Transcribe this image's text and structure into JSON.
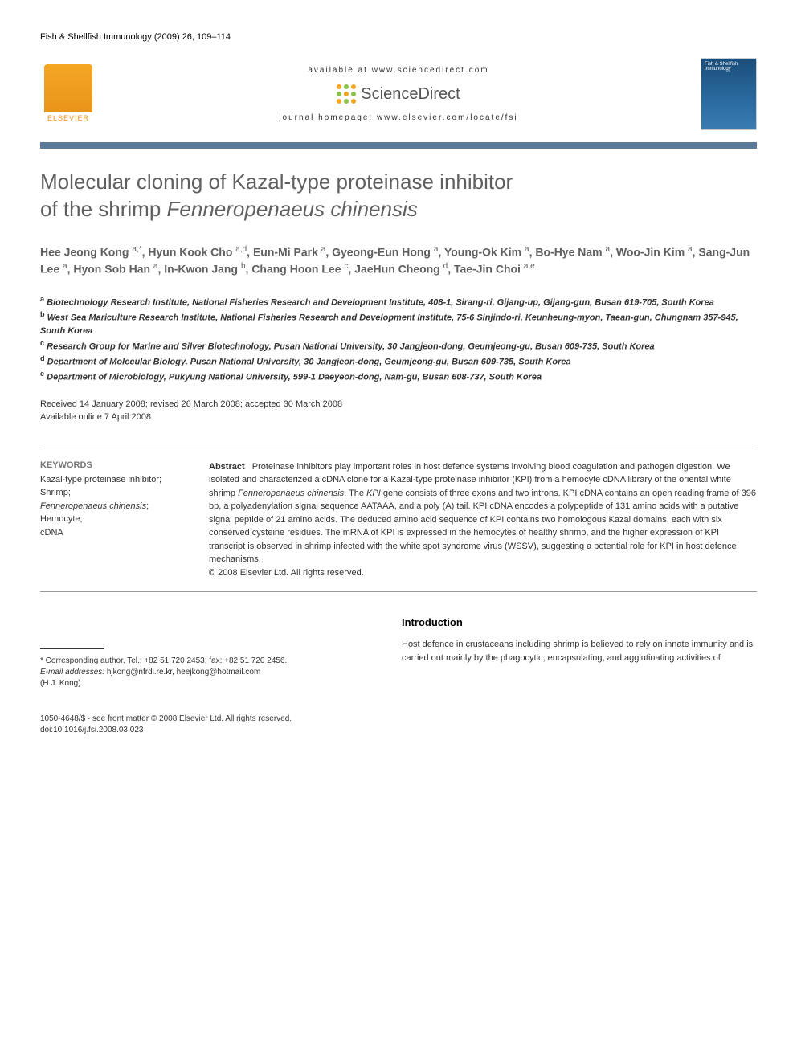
{
  "journal_ref": "Fish & Shellfish Immunology (2009) 26, 109–114",
  "header": {
    "available_text": "available at www.sciencedirect.com",
    "sd_brand": "ScienceDirect",
    "homepage_text": "journal homepage: www.elsevier.com/locate/fsi",
    "elsevier_label": "ELSEVIER",
    "cover_title": "Fish & Shellfish Immunology"
  },
  "divider_color": "#5b7a9a",
  "title": {
    "line1": "Molecular cloning of Kazal-type proteinase inhibitor",
    "line2_prefix": "of the shrimp ",
    "line2_italic": "Fenneropenaeus chinensis"
  },
  "authors_html": "Hee Jeong Kong <sup>a,*</sup>, Hyun Kook Cho <sup>a,d</sup>, Eun-Mi Park <sup>a</sup>, Gyeong-Eun Hong <sup>a</sup>, Young-Ok Kim <sup>a</sup>, Bo-Hye Nam <sup>a</sup>, Woo-Jin Kim <sup>a</sup>, Sang-Jun Lee <sup>a</sup>, Hyon Sob Han <sup>a</sup>, In-Kwon Jang <sup>b</sup>, Chang Hoon Lee <sup>c</sup>, JaeHun Cheong <sup>d</sup>, Tae-Jin Choi <sup>a,e</sup>",
  "affiliations": [
    "<sup>a</sup> Biotechnology Research Institute, National Fisheries Research and Development Institute, 408-1, Sirang-ri, Gijang-up, Gijang-gun, Busan 619-705, South Korea",
    "<sup>b</sup> West Sea Mariculture Research Institute, National Fisheries Research and Development Institute, 75-6 Sinjindo-ri, Keunheung-myon, Taean-gun, Chungnam 357-945, South Korea",
    "<sup>c</sup> Research Group for Marine and Silver Biotechnology, Pusan National University, 30 Jangjeon-dong, Geumjeong-gu, Busan 609-735, South Korea",
    "<sup>d</sup> Department of Molecular Biology, Pusan National University, 30 Jangjeon-dong, Geumjeong-gu, Busan 609-735, South Korea",
    "<sup>e</sup> Department of Microbiology, Pukyung National University, 599-1 Daeyeon-dong, Nam-gu, Busan 608-737, South Korea"
  ],
  "dates": {
    "received": "Received 14 January 2008; revised 26 March 2008; accepted 30 March 2008",
    "online": "Available online 7 April 2008"
  },
  "keywords": {
    "heading": "KEYWORDS",
    "items": [
      "Kazal-type proteinase inhibitor;",
      "Shrimp;",
      "<span class=\"italic\">Fenneropenaeus chinensis</span>;",
      "Hemocyte;",
      "cDNA"
    ]
  },
  "abstract": {
    "label": "Abstract",
    "body": "Proteinase inhibitors play important roles in host defence systems involving blood coagulation and pathogen digestion. We isolated and characterized a cDNA clone for a Kazal-type proteinase inhibitor (KPI) from a hemocyte cDNA library of the oriental white shrimp <span class=\"italic\">Fenneropenaeus chinensis</span>. The <span class=\"italic\">KPI</span> gene consists of three exons and two introns. KPI cDNA contains an open reading frame of 396 bp, a polyadenylation signal sequence AATAAA, and a poly (A) tail. KPI cDNA encodes a polypeptide of 131 amino acids with a putative signal peptide of 21 amino acids. The deduced amino acid sequence of KPI contains two homologous Kazal domains, each with six conserved cysteine residues. The mRNA of KPI is expressed in the hemocytes of healthy shrimp, and the higher expression of KPI transcript is observed in shrimp infected with the white spot syndrome virus (WSSV), suggesting a potential role for KPI in host defence mechanisms.",
    "copyright": "© 2008 Elsevier Ltd. All rights reserved."
  },
  "footnote": {
    "corresponding": "* Corresponding author. Tel.: +82 51 720 2453; fax: +82 51 720 2456.",
    "email_label": "E-mail addresses:",
    "emails": "hjkong@nfrdi.re.kr, heejkong@hotmail.com",
    "email_person": "(H.J. Kong)."
  },
  "introduction": {
    "heading": "Introduction",
    "text": "Host defence in crustaceans including shrimp is believed to rely on innate immunity and is carried out mainly by the phagocytic, encapsulating, and agglutinating activities of"
  },
  "page_footer": {
    "line1": "1050-4648/$ - see front matter © 2008 Elsevier Ltd. All rights reserved.",
    "line2": "doi:10.1016/j.fsi.2008.03.023"
  },
  "sd_dot_colors": [
    "#f5a623",
    "#8bc34a",
    "#f5a623",
    "#8bc34a",
    "#f5a623",
    "#8bc34a",
    "#f5a623",
    "#8bc34a",
    "#f5a623"
  ]
}
